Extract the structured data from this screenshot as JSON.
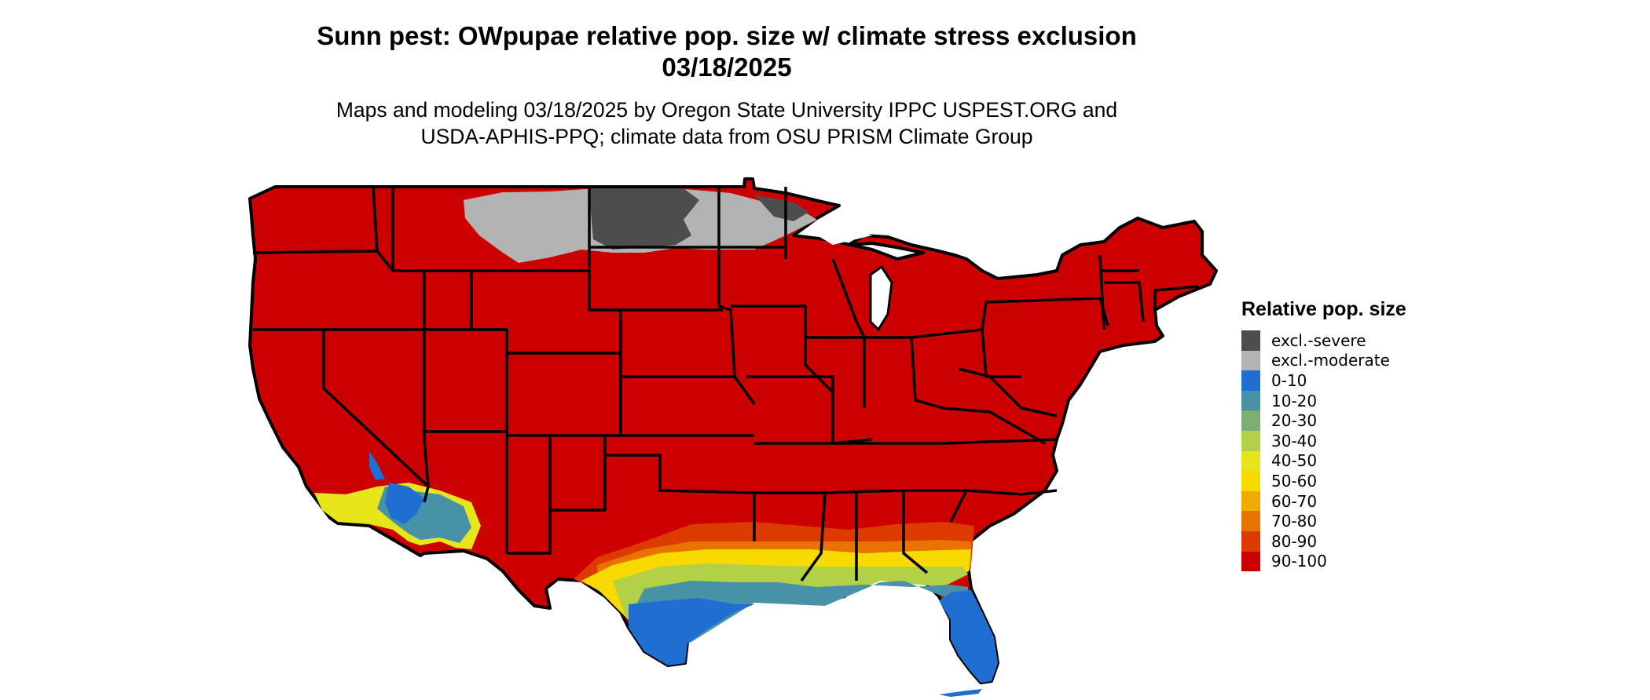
{
  "title_line1": "Sunn pest: OWpupae relative pop. size w/ climate stress exclusion",
  "title_line2": "03/18/2025",
  "subtitle_line1": "Maps and modeling 03/18/2025 by Oregon State University IPPC USPEST.ORG and",
  "subtitle_line2": "USDA-APHIS-PPQ; climate data from OSU PRISM Climate Group",
  "map": {
    "region": "contiguous United States",
    "base_color": "#cc0000",
    "border_color": "#000000"
  },
  "legend": {
    "title": "Relative pop. size",
    "items": [
      {
        "label": "excl.-severe",
        "color": "#4d4d4d"
      },
      {
        "label": "excl.-moderate",
        "color": "#b3b3b3"
      },
      {
        "label": "0-10",
        "color": "#1f6fd1"
      },
      {
        "label": "10-20",
        "color": "#4892a8"
      },
      {
        "label": "20-30",
        "color": "#7daf74"
      },
      {
        "label": "30-40",
        "color": "#b3d147"
      },
      {
        "label": "40-50",
        "color": "#e6e61a"
      },
      {
        "label": "50-60",
        "color": "#f9da00"
      },
      {
        "label": "60-70",
        "color": "#f0aa00"
      },
      {
        "label": "70-80",
        "color": "#e87400"
      },
      {
        "label": "80-90",
        "color": "#dd3a00"
      },
      {
        "label": "90-100",
        "color": "#cc0000"
      }
    ]
  }
}
